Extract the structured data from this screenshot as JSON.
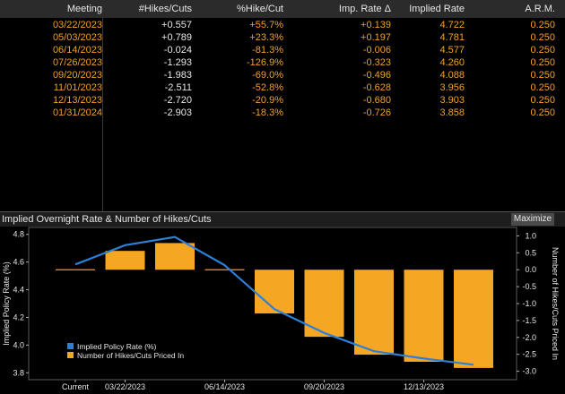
{
  "table": {
    "headers": {
      "meeting": "Meeting",
      "hikes": "#Hikes/Cuts",
      "pct": "%Hike/Cut",
      "imp": "Imp. Rate Δ",
      "rate": "Implied Rate",
      "arm": "A.R.M."
    },
    "rows": [
      {
        "meeting": "03/22/2023",
        "hikes": "+0.557",
        "pct": "+55.7%",
        "imp": "+0.139",
        "rate": "4.722",
        "arm": "0.250"
      },
      {
        "meeting": "05/03/2023",
        "hikes": "+0.789",
        "pct": "+23.3%",
        "imp": "+0.197",
        "rate": "4.781",
        "arm": "0.250"
      },
      {
        "meeting": "06/14/2023",
        "hikes": "-0.024",
        "pct": "-81.3%",
        "imp": "-0.006",
        "rate": "4.577",
        "arm": "0.250"
      },
      {
        "meeting": "07/26/2023",
        "hikes": "-1.293",
        "pct": "-126.9%",
        "imp": "-0.323",
        "rate": "4.260",
        "arm": "0.250"
      },
      {
        "meeting": "09/20/2023",
        "hikes": "-1.983",
        "pct": "-69.0%",
        "imp": "-0.496",
        "rate": "4.088",
        "arm": "0.250"
      },
      {
        "meeting": "11/01/2023",
        "hikes": "-2.511",
        "pct": "-52.8%",
        "imp": "-0.628",
        "rate": "3.956",
        "arm": "0.250"
      },
      {
        "meeting": "12/13/2023",
        "hikes": "-2.720",
        "pct": "-20.9%",
        "imp": "-0.680",
        "rate": "3.903",
        "arm": "0.250"
      },
      {
        "meeting": "01/31/2024",
        "hikes": "-2.903",
        "pct": "-18.3%",
        "imp": "-0.726",
        "rate": "3.858",
        "arm": "0.250"
      }
    ]
  },
  "chart_panel": {
    "title": "Implied Overnight Rate & Number of Hikes/Cuts",
    "maximize_label": "Maximize"
  },
  "chart_data": {
    "type": "bar",
    "title": "Implied Overnight Rate & Number of Hikes/Cuts",
    "categories": [
      "Current",
      "03/22/2023",
      "05/03/2023",
      "06/14/2023",
      "07/26/2023",
      "09/20/2023",
      "11/01/2023",
      "12/13/2023",
      "01/31/2024"
    ],
    "x_tick_labels": [
      "Current",
      "03/22/2023",
      "06/14/2023",
      "09/20/2023",
      "12/13/2023"
    ],
    "x_tick_indices": [
      0,
      1,
      3,
      5,
      7
    ],
    "series": [
      {
        "name": "Implied Policy Rate (%)",
        "type": "line",
        "axis": "left",
        "color": "#2e7fd8",
        "values": [
          4.583,
          4.722,
          4.781,
          4.577,
          4.26,
          4.088,
          3.956,
          3.903,
          3.858
        ]
      },
      {
        "name": "Number of Hikes/Cuts Priced In",
        "type": "bar",
        "axis": "right",
        "color": "#f5a623",
        "values": [
          0,
          0.557,
          0.789,
          -0.024,
          -1.293,
          -1.983,
          -2.511,
          -2.72,
          -2.903
        ]
      }
    ],
    "ylabel_left": "Implied Policy Rate (%)",
    "ylabel_right": "Number of Hikes/Cuts Priced In",
    "ylim_left": [
      3.75,
      4.85
    ],
    "ylim_right": [
      -3.25,
      1.25
    ],
    "yticks_left": [
      "4.8",
      "4.6",
      "4.4",
      "4.2",
      "4.0",
      "3.8"
    ],
    "yticks_left_values": [
      4.8,
      4.6,
      4.4,
      4.2,
      4.0,
      3.8
    ],
    "yticks_right": [
      "1.0",
      "0.5",
      "0.0",
      "-0.5",
      "-1.0",
      "-1.5",
      "-2.0",
      "-2.5",
      "-3.0"
    ],
    "yticks_right_values": [
      1.0,
      0.5,
      0.0,
      -0.5,
      -1.0,
      -1.5,
      -2.0,
      -2.5,
      -3.0
    ],
    "legend": [
      {
        "label": "Implied Policy Rate (%)",
        "color": "#2e7fd8"
      },
      {
        "label": "Number of Hikes/Cuts Priced In",
        "color": "#f5a623"
      }
    ],
    "legend_position": "bottom-left",
    "grid": false
  }
}
